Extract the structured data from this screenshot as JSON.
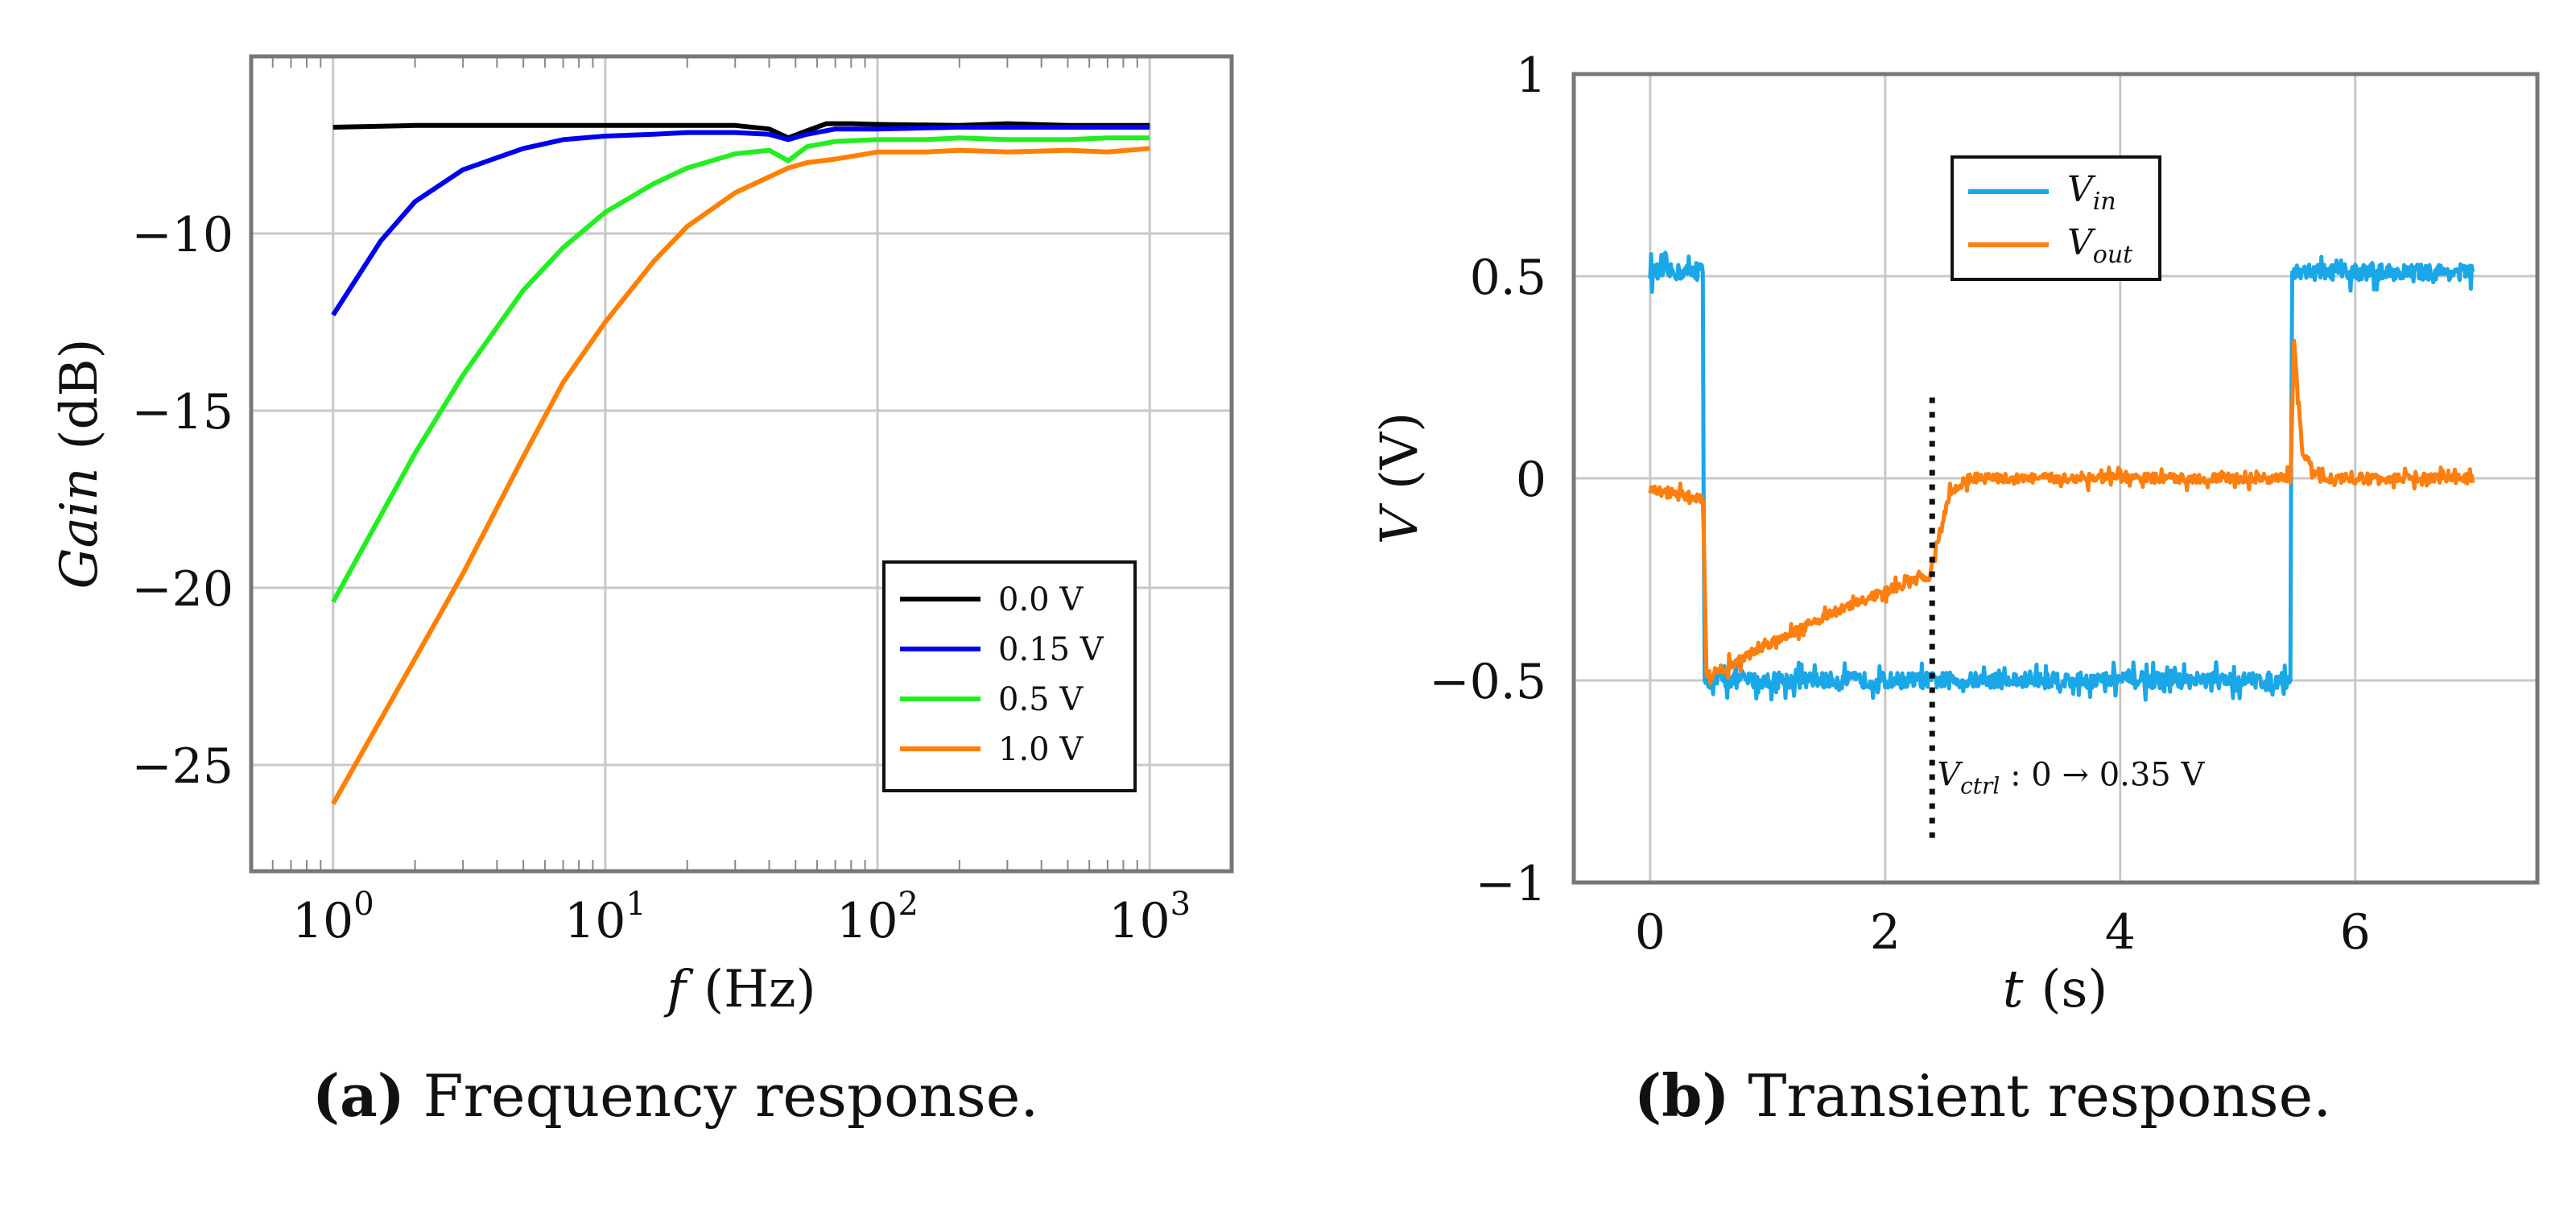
{
  "chart_data": [
    {
      "id": "a",
      "type": "line",
      "xscale": "log",
      "xlim": [
        0.5,
        2000
      ],
      "ylim": [
        -28,
        -5
      ],
      "xticks": [
        1,
        10,
        100,
        1000
      ],
      "xtick_labels": [
        {
          "base": "10",
          "exp": "0"
        },
        {
          "base": "10",
          "exp": "1"
        },
        {
          "base": "10",
          "exp": "2"
        },
        {
          "base": "10",
          "exp": "3"
        }
      ],
      "yticks": [
        -10,
        -15,
        -20,
        -25
      ],
      "ytick_labels": [
        "−10",
        "−15",
        "−20",
        "−25"
      ],
      "xlabel_var": "f",
      "xlabel_unit": "(Hz)",
      "ylabel_var": "Gain",
      "ylabel_unit": "(dB)",
      "grid": true,
      "legend_position": "bottom-right",
      "series": [
        {
          "name": "0.0 V",
          "color": "#000000",
          "x": [
            1,
            2,
            5,
            10,
            20,
            30,
            40,
            47,
            55,
            65,
            80,
            100,
            200,
            300,
            500,
            700,
            1000
          ],
          "y": [
            -7.0,
            -6.95,
            -6.95,
            -6.95,
            -6.95,
            -6.95,
            -7.05,
            -7.3,
            -7.1,
            -6.9,
            -6.9,
            -6.92,
            -6.95,
            -6.9,
            -6.95,
            -6.95,
            -6.95
          ]
        },
        {
          "name": "0.15 V",
          "color": "#0000ee",
          "x": [
            1,
            1.5,
            2,
            3,
            5,
            7,
            10,
            15,
            20,
            30,
            40,
            47,
            55,
            70,
            100,
            200,
            300,
            500,
            1000
          ],
          "y": [
            -12.3,
            -10.2,
            -9.1,
            -8.2,
            -7.6,
            -7.35,
            -7.25,
            -7.2,
            -7.15,
            -7.15,
            -7.2,
            -7.35,
            -7.2,
            -7.05,
            -7.05,
            -7.0,
            -7.0,
            -7.0,
            -7.0
          ]
        },
        {
          "name": "0.5 V",
          "color": "#22ee22",
          "x": [
            1,
            2,
            3,
            5,
            7,
            10,
            15,
            20,
            30,
            40,
            47,
            55,
            70,
            100,
            150,
            200,
            300,
            500,
            700,
            1000
          ],
          "y": [
            -20.4,
            -16.2,
            -14.0,
            -11.6,
            -10.4,
            -9.4,
            -8.6,
            -8.15,
            -7.75,
            -7.65,
            -7.95,
            -7.55,
            -7.4,
            -7.35,
            -7.35,
            -7.3,
            -7.35,
            -7.35,
            -7.3,
            -7.3
          ]
        },
        {
          "name": "1.0 V",
          "color": "#ff8000",
          "x": [
            1,
            2,
            3,
            5,
            7,
            10,
            15,
            20,
            30,
            40,
            47,
            55,
            70,
            100,
            150,
            200,
            300,
            500,
            700,
            1000
          ],
          "y": [
            -26.1,
            -22.0,
            -19.6,
            -16.3,
            -14.2,
            -12.5,
            -10.8,
            -9.8,
            -8.85,
            -8.4,
            -8.15,
            -8.0,
            -7.9,
            -7.7,
            -7.7,
            -7.65,
            -7.7,
            -7.65,
            -7.7,
            -7.6
          ]
        }
      ]
    },
    {
      "id": "b",
      "type": "line",
      "xlim": [
        -0.65,
        7.55
      ],
      "ylim": [
        -1,
        1
      ],
      "xticks": [
        0,
        2,
        4,
        6
      ],
      "xtick_labels": [
        "0",
        "2",
        "4",
        "6"
      ],
      "yticks": [
        1,
        0.5,
        0,
        -0.5,
        -1
      ],
      "ytick_labels": [
        "1",
        "0.5",
        "0",
        "−0.5",
        "−1"
      ],
      "xlabel_var": "t",
      "xlabel_unit": "(s)",
      "ylabel_var": "V",
      "ylabel_unit": "(V)",
      "grid": true,
      "legend_position": "top-center",
      "series": [
        {
          "name_base": "V",
          "name_sub": "in",
          "color": "#1aa7e8",
          "x": [
            0,
            0.45,
            0.46,
            5.45,
            5.46,
            7.0
          ],
          "y": [
            0.51,
            0.51,
            -0.5,
            -0.5,
            0.51,
            0.51
          ],
          "noise": 0.02
        },
        {
          "name_base": "V",
          "name_sub": "out",
          "color": "#ff7f0e",
          "x": [
            0,
            0.45,
            0.48,
            0.7,
            1.0,
            1.5,
            2.0,
            2.38,
            2.44,
            2.55,
            2.7,
            3.0,
            5.45,
            5.48,
            5.55,
            5.7,
            7.0
          ],
          "y": [
            -0.03,
            -0.05,
            -0.49,
            -0.46,
            -0.41,
            -0.34,
            -0.28,
            -0.24,
            -0.16,
            -0.04,
            0.0,
            0.0,
            0.0,
            0.34,
            0.06,
            0.0,
            0.0
          ],
          "noise": 0.012
        }
      ],
      "annotation": {
        "x": 2.4,
        "y_range": [
          -0.9,
          0.2
        ],
        "label_base": "V",
        "label_sub": "ctrl",
        "label_rest": " : 0 → 0.35 V"
      }
    }
  ],
  "captions": [
    {
      "tag": "(a)",
      "text": " Frequency response."
    },
    {
      "tag": "(b)",
      "text": " Transient response."
    }
  ]
}
